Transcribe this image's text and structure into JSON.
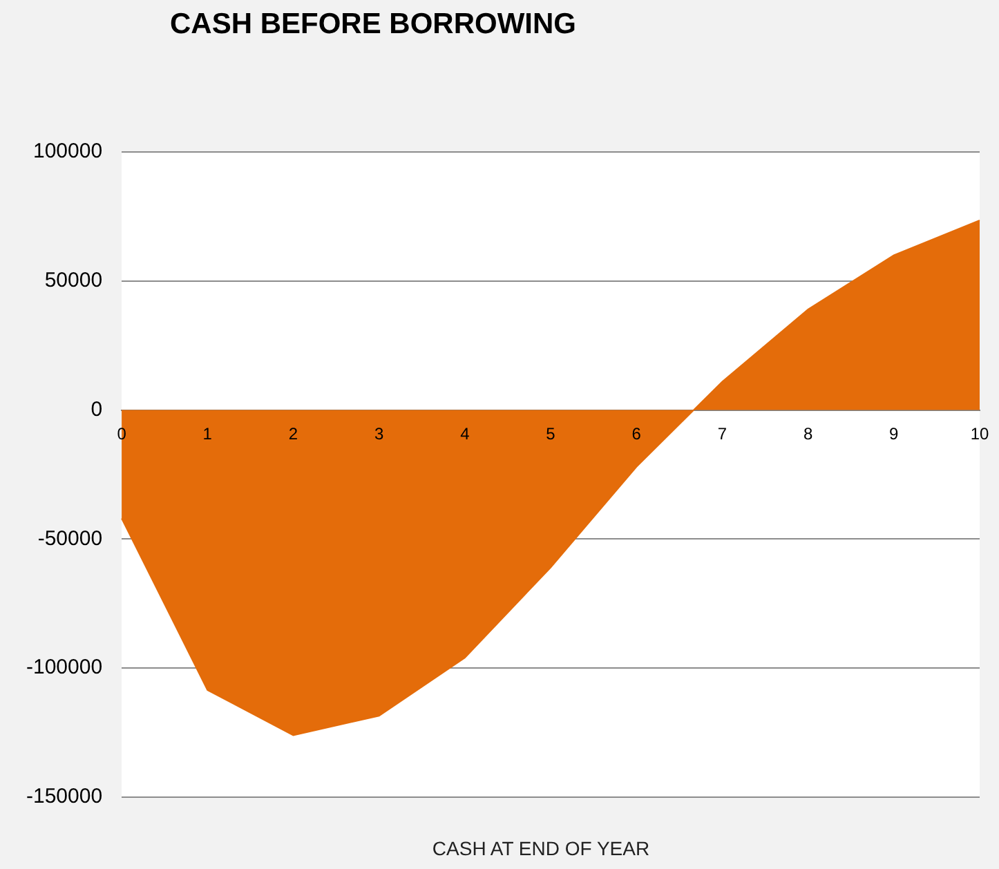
{
  "chart_data": {
    "type": "area",
    "title": "CASH BEFORE BORROWING",
    "xlabel": "CASH AT END OF YEAR",
    "categories": [
      "0",
      "1",
      "2",
      "3",
      "4",
      "5",
      "6",
      "7",
      "8",
      "9",
      "10"
    ],
    "series": [
      {
        "color": "#e46c0a",
        "values": [
          -42000,
          -108500,
          -126000,
          -118500,
          -96000,
          -61000,
          -22000,
          11000,
          39000,
          60000,
          73500
        ]
      }
    ],
    "ylim": [
      -150000,
      100000
    ],
    "yticks": [
      -150000,
      -100000,
      -50000,
      0,
      50000,
      100000
    ],
    "grid": "y",
    "legend": false
  }
}
